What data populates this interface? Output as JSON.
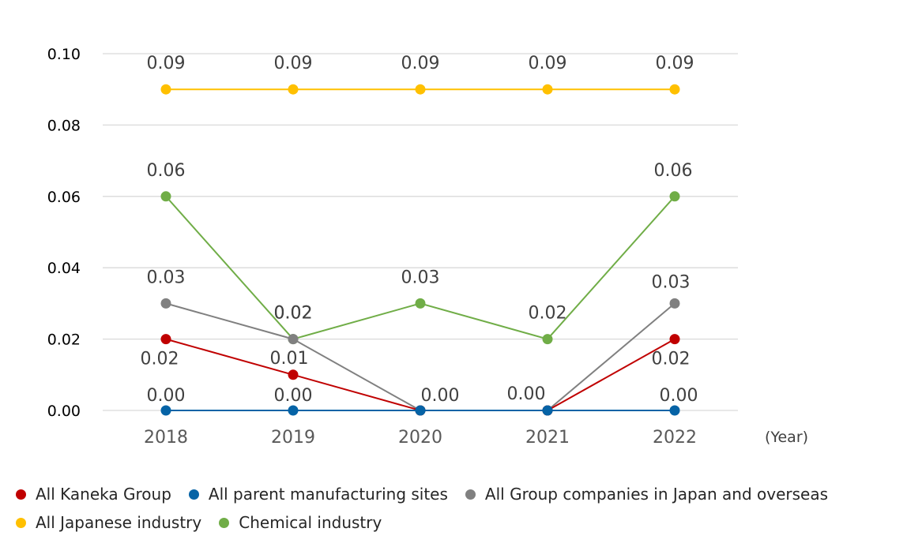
{
  "chart_data": {
    "type": "line",
    "categories": [
      "2018",
      "2019",
      "2020",
      "2021",
      "2022"
    ],
    "x_unit_label": "(Year)",
    "ylim": [
      0,
      0.1
    ],
    "yticks": [
      "0.00",
      "0.02",
      "0.04",
      "0.06",
      "0.08",
      "0.10"
    ],
    "grid": true,
    "legend_position": "bottom",
    "series": [
      {
        "name": "All Japanese industry",
        "color": "#FFC000",
        "values": [
          0.09,
          0.09,
          0.09,
          0.09,
          0.09
        ],
        "labels": [
          "0.09",
          "0.09",
          "0.09",
          "0.09",
          "0.09"
        ]
      },
      {
        "name": "Chemical industry",
        "color": "#70AD47",
        "values": [
          0.06,
          0.02,
          0.03,
          0.02,
          0.06
        ],
        "labels": [
          "0.06",
          "0.02",
          "0.03",
          "0.02",
          "0.06"
        ]
      },
      {
        "name": "All Group companies in Japan and overseas",
        "color": "#808080",
        "values": [
          0.03,
          0.02,
          0.0,
          0.0,
          0.03
        ],
        "labels": [
          "0.03",
          "0.02",
          "",
          "",
          "0.03"
        ]
      },
      {
        "name": "All Kaneka Group",
        "color": "#C00000",
        "values": [
          0.02,
          0.01,
          0.0,
          0.0,
          0.02
        ],
        "labels": [
          "0.02",
          "0.01",
          "0.00",
          "0.00",
          "0.02"
        ]
      },
      {
        "name": "All parent manufacturing sites",
        "color": "#0563A6",
        "values": [
          0.0,
          0.0,
          0.0,
          0.0,
          0.0
        ],
        "labels": [
          "0.00",
          "0.00",
          "",
          "",
          "0.00"
        ]
      }
    ]
  },
  "legend_rows": [
    [
      {
        "name": "All Kaneka Group",
        "color": "#C00000"
      },
      {
        "name": "All parent manufacturing sites",
        "color": "#0563A6"
      },
      {
        "name": "All Group companies in Japan and overseas",
        "color": "#808080"
      }
    ],
    [
      {
        "name": "All Japanese industry",
        "color": "#FFC000"
      },
      {
        "name": "Chemical industry",
        "color": "#70AD47"
      }
    ]
  ]
}
